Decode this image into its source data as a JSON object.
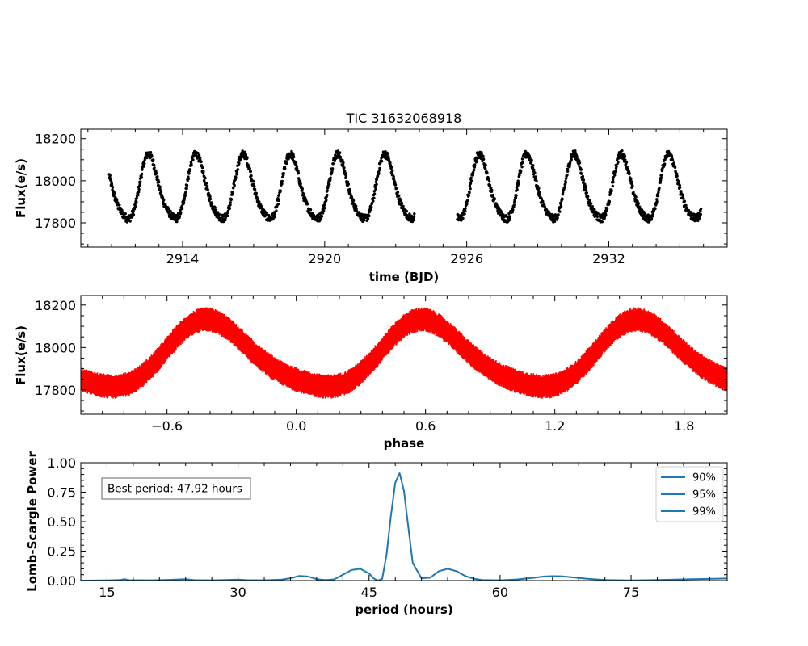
{
  "figure": {
    "title": "TIC 31632068918"
  },
  "chart_data": [
    {
      "type": "scatter",
      "panel": "lightcurve",
      "title": "TIC 31632068918",
      "xlabel": "time (BJD)",
      "ylabel": "Flux(e/s)",
      "xlim": [
        2909.7,
        2937.0
      ],
      "ylim": [
        17685,
        18245
      ],
      "xticks": [
        2914,
        2920,
        2926,
        2932
      ],
      "yticks": [
        17800,
        18000,
        18200
      ],
      "color": "#000000",
      "segments": [
        [
          2910.9,
          2923.8
        ],
        [
          2925.6,
          2935.9
        ]
      ],
      "period_days": 1.9967,
      "mean_flux": 17955,
      "amplitude": 150,
      "scatter": 18
    },
    {
      "type": "scatter",
      "panel": "phase",
      "xlabel": "phase",
      "ylabel": "Flux(e/s)",
      "xlim": [
        -1.0,
        2.0
      ],
      "ylim": [
        17685,
        18245
      ],
      "xticks": [
        -0.6,
        0.0,
        0.6,
        1.2,
        1.8
      ],
      "xtick_labels": [
        "−0.6",
        "0.0",
        "0.6",
        "1.2",
        "1.8"
      ],
      "yticks": [
        17800,
        18000,
        18200
      ],
      "color": "#ff0000",
      "peak_phase": 0.6,
      "trough_phase": 0.2,
      "mean_flux": 17955,
      "amplitude": 155,
      "band_halfwidth": 50
    },
    {
      "type": "line",
      "panel": "periodogram",
      "xlabel": "period (hours)",
      "ylabel": "Lomb-Scargle Power",
      "xlim": [
        12,
        86
      ],
      "ylim": [
        0,
        1.0
      ],
      "xticks": [
        15,
        30,
        45,
        60,
        75
      ],
      "yticks": [
        0.0,
        0.25,
        0.5,
        0.75,
        1.0
      ],
      "ytick_labels": [
        "0.00",
        "0.25",
        "0.50",
        "0.75",
        "1.00"
      ],
      "color": "#1f77b4",
      "x": [
        12,
        15,
        16.5,
        17,
        17.5,
        20,
        22,
        24,
        25,
        27,
        29,
        30,
        31,
        33,
        35,
        36,
        37,
        38,
        39,
        40,
        41,
        42,
        43,
        44,
        45,
        45.5,
        46,
        46.5,
        47,
        47.5,
        48,
        48.5,
        49,
        49.5,
        50,
        51,
        52,
        53,
        54,
        55,
        56,
        57,
        58,
        60,
        62,
        64,
        65,
        66,
        67,
        68,
        70,
        72,
        75,
        78,
        82,
        86
      ],
      "y": [
        0.0,
        0.002,
        0.005,
        0.012,
        0.004,
        0.003,
        0.006,
        0.012,
        0.004,
        0.003,
        0.006,
        0.008,
        0.004,
        0.003,
        0.008,
        0.02,
        0.04,
        0.035,
        0.012,
        0.004,
        0.01,
        0.05,
        0.09,
        0.1,
        0.06,
        0.02,
        0.0,
        0.015,
        0.22,
        0.55,
        0.83,
        0.91,
        0.76,
        0.45,
        0.15,
        0.02,
        0.025,
        0.08,
        0.1,
        0.08,
        0.04,
        0.015,
        0.005,
        0.003,
        0.01,
        0.025,
        0.035,
        0.038,
        0.037,
        0.03,
        0.015,
        0.005,
        0.002,
        0.005,
        0.012,
        0.018
      ],
      "legend": [
        "90%",
        "95%",
        "99%"
      ],
      "legend_position": "upper right",
      "annotation": "Best period: 47.92 hours"
    }
  ]
}
